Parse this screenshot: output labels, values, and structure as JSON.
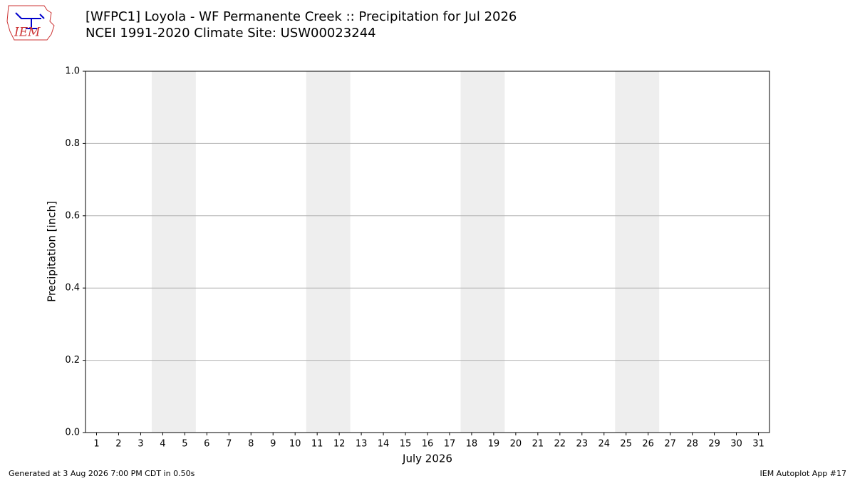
{
  "chart_data": {
    "type": "bar",
    "title": "[WFPC1] Loyola - WF Permanente Creek :: Precipitation for Jul 2026",
    "subtitle": "NCEI 1991-2020 Climate Site: USW00023244",
    "ylabel": "Precipitation [inch]",
    "xlabel": "July 2026",
    "xlim": [
      0.5,
      31.5
    ],
    "xticks": [
      1,
      2,
      3,
      4,
      5,
      6,
      7,
      8,
      9,
      10,
      11,
      12,
      13,
      14,
      15,
      16,
      17,
      18,
      19,
      20,
      21,
      22,
      23,
      24,
      25,
      26,
      27,
      28,
      29,
      30,
      31
    ],
    "ylim": [
      0,
      1
    ],
    "yticks": [
      {
        "value": 0,
        "label": "0.0"
      },
      {
        "value": 0.2,
        "label": "0.2"
      },
      {
        "value": 0.4,
        "label": "0.4"
      },
      {
        "value": 0.6,
        "label": "0.6"
      },
      {
        "value": 0.8,
        "label": "0.8"
      },
      {
        "value": 1,
        "label": "1.0"
      }
    ],
    "grid": true,
    "shaded_spans": [
      [
        3.5,
        5.5
      ],
      [
        10.5,
        12.5
      ],
      [
        17.5,
        19.5
      ],
      [
        24.5,
        26.5
      ]
    ],
    "shade_color": "#eeeeee"
  },
  "footer": {
    "left": "Generated at 3 Aug 2026 7:00 PM CDT in 0.50s",
    "right": "IEM Autoplot App #17"
  },
  "logo": {
    "text": "IEM"
  }
}
